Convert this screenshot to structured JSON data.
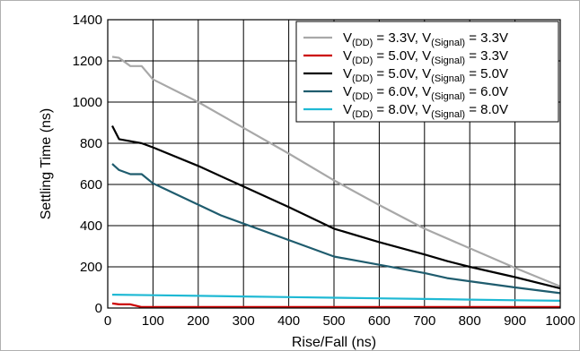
{
  "chart_data": {
    "type": "line",
    "title": "",
    "xlabel": "Rise/Fall (ns)",
    "ylabel": "Settling Time (ns)",
    "xlim": [
      0,
      1000
    ],
    "ylim": [
      0,
      1400
    ],
    "xticks": [
      0,
      100,
      200,
      300,
      400,
      500,
      600,
      700,
      800,
      900,
      1000
    ],
    "yticks": [
      0,
      200,
      400,
      600,
      800,
      1000,
      1200,
      1400
    ],
    "grid": true,
    "legend_position": "top-right",
    "series": [
      {
        "label_parts": [
          [
            "V",
            ""
          ],
          [
            "(DD)",
            "sub"
          ],
          [
            " = 3.3V, V",
            ""
          ],
          [
            "(Signal)",
            "sub"
          ],
          [
            " = 3.3V",
            ""
          ]
        ],
        "color": "#a8a8a8",
        "x": [
          10,
          25,
          50,
          75,
          100,
          200,
          300,
          400,
          500,
          600,
          700,
          800,
          900,
          1000
        ],
        "y": [
          1220,
          1215,
          1175,
          1175,
          1110,
          1000,
          875,
          750,
          620,
          500,
          385,
          290,
          195,
          105
        ]
      },
      {
        "label_parts": [
          [
            "V",
            ""
          ],
          [
            "(DD)",
            "sub"
          ],
          [
            " = 5.0V, V",
            ""
          ],
          [
            "(Signal)",
            "sub"
          ],
          [
            " = 3.3V",
            ""
          ]
        ],
        "color": "#cc0000",
        "x": [
          10,
          25,
          50,
          75,
          100,
          200,
          300,
          400,
          500,
          600,
          700,
          800,
          900,
          1000
        ],
        "y": [
          22,
          18,
          18,
          5,
          5,
          5,
          5,
          5,
          5,
          5,
          5,
          5,
          5,
          5
        ]
      },
      {
        "label_parts": [
          [
            "V",
            ""
          ],
          [
            "(DD)",
            "sub"
          ],
          [
            " = 5.0V, V",
            ""
          ],
          [
            "(Signal)",
            "sub"
          ],
          [
            " = 5.0V",
            ""
          ]
        ],
        "color": "#000000",
        "x": [
          10,
          25,
          50,
          75,
          100,
          200,
          300,
          400,
          500,
          600,
          700,
          750,
          800,
          900,
          1000
        ],
        "y": [
          885,
          820,
          810,
          800,
          780,
          690,
          590,
          490,
          385,
          320,
          260,
          228,
          200,
          150,
          95
        ]
      },
      {
        "label_parts": [
          [
            "V",
            ""
          ],
          [
            "(DD)",
            "sub"
          ],
          [
            " = 6.0V, V",
            ""
          ],
          [
            "(Signal)",
            "sub"
          ],
          [
            " = 6.0V",
            ""
          ]
        ],
        "color": "#1f5c6e",
        "x": [
          10,
          25,
          50,
          75,
          100,
          250,
          500,
          600,
          700,
          750,
          800,
          900,
          1000
        ],
        "y": [
          700,
          670,
          650,
          650,
          605,
          450,
          250,
          210,
          170,
          145,
          130,
          100,
          72
        ]
      },
      {
        "label_parts": [
          [
            "V",
            ""
          ],
          [
            "(DD)",
            "sub"
          ],
          [
            " = 8.0V, V",
            ""
          ],
          [
            "(Signal)",
            "sub"
          ],
          [
            " = 8.0V",
            ""
          ]
        ],
        "color": "#1fb9d4",
        "x": [
          10,
          100,
          200,
          300,
          400,
          500,
          600,
          700,
          800,
          900,
          1000
        ],
        "y": [
          65,
          62,
          59,
          56,
          53,
          50,
          47,
          44,
          41,
          38,
          35
        ]
      }
    ]
  }
}
